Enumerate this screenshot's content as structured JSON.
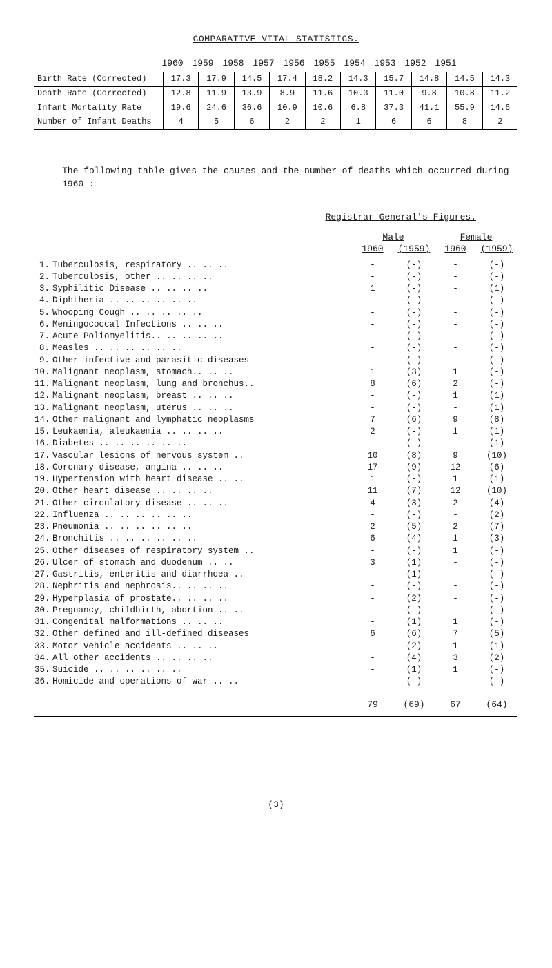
{
  "title": "COMPARATIVE VITAL STATISTICS.",
  "years": [
    "1960",
    "1959",
    "1958",
    "1957",
    "1956",
    "1955",
    "1954",
    "1953",
    "1952",
    "1951"
  ],
  "comp_rows": [
    {
      "label": "Birth Rate (Corrected)",
      "vals": [
        "17.3",
        "17.9",
        "14.5",
        "17.4",
        "18.2",
        "14.3",
        "15.7",
        "14.8",
        "14.5",
        "14.3"
      ]
    },
    {
      "label": "Death Rate (Corrected)",
      "vals": [
        "12.8",
        "11.9",
        "13.9",
        "8.9",
        "11.6",
        "10.3",
        "11.0",
        "9.8",
        "10.8",
        "11.2"
      ]
    },
    {
      "label": "Infant Mortality Rate",
      "vals": [
        "19.6",
        "24.6",
        "36.6",
        "10.9",
        "10.6",
        "6.8",
        "37.3",
        "41.1",
        "55.9",
        "14.6"
      ]
    },
    {
      "label": "Number of Infant Deaths",
      "vals": [
        "4",
        "5",
        "6",
        "2",
        "2",
        "1",
        "6",
        "6",
        "8",
        "2"
      ]
    }
  ],
  "paragraph": "The following table gives the causes and the number of deaths which occurred during 1960 :-",
  "reg_title": "Registrar General's Figures.",
  "male_label": "Male",
  "female_label": "Female",
  "y1960": "1960",
  "y1959": "(1959)",
  "causes": [
    {
      "n": "1.",
      "l": "Tuberculosis, respiratory  .. .. ..",
      "m60": "-",
      "m59": "(-)",
      "f60": "-",
      "f59": "(-)"
    },
    {
      "n": "2.",
      "l": "Tuberculosis, other   .. .. .. ..",
      "m60": "-",
      "m59": "(-)",
      "f60": "-",
      "f59": "(-)"
    },
    {
      "n": "3.",
      "l": "Syphilitic Disease    .. .. .. ..",
      "m60": "1",
      "m59": "(-)",
      "f60": "-",
      "f59": "(1)"
    },
    {
      "n": "4.",
      "l": "Diphtheria  .. .. .. .. .. ..",
      "m60": "-",
      "m59": "(-)",
      "f60": "-",
      "f59": "(-)"
    },
    {
      "n": "5.",
      "l": "Whooping Cough    .. .. .. .. ..",
      "m60": "-",
      "m59": "(-)",
      "f60": "-",
      "f59": "(-)"
    },
    {
      "n": "6.",
      "l": "Meningococcal Infections  .. .. ..",
      "m60": "-",
      "m59": "(-)",
      "f60": "-",
      "f59": "(-)"
    },
    {
      "n": "7.",
      "l": "Acute Poliomyelitis.. .. .. .. ..",
      "m60": "-",
      "m59": "(-)",
      "f60": "-",
      "f59": "(-)"
    },
    {
      "n": "8.",
      "l": "Measles  .. .. .. .. .. ..",
      "m60": "-",
      "m59": "(-)",
      "f60": "-",
      "f59": "(-)"
    },
    {
      "n": "9.",
      "l": "Other infective and parasitic diseases",
      "m60": "-",
      "m59": "(-)",
      "f60": "-",
      "f59": "(-)"
    },
    {
      "n": "10.",
      "l": "Malignant neoplasm, stomach.. .. ..",
      "m60": "1",
      "m59": "(3)",
      "f60": "1",
      "f59": "(-)"
    },
    {
      "n": "11.",
      "l": "Malignant neoplasm, lung and bronchus..",
      "m60": "8",
      "m59": "(6)",
      "f60": "2",
      "f59": "(-)"
    },
    {
      "n": "12.",
      "l": "Malignant neoplasm, breast .. .. ..",
      "m60": "-",
      "m59": "(-)",
      "f60": "1",
      "f59": "(1)"
    },
    {
      "n": "13.",
      "l": "Malignant neoplasm, uterus .. .. ..",
      "m60": "-",
      "m59": "(-)",
      "f60": "-",
      "f59": "(1)"
    },
    {
      "n": "14.",
      "l": "Other malignant and lymphatic neoplasms",
      "m60": "7",
      "m59": "(6)",
      "f60": "9",
      "f59": "(8)"
    },
    {
      "n": "15.",
      "l": "Leukaemia, aleukaemia .. .. .. ..",
      "m60": "2",
      "m59": "(-)",
      "f60": "1",
      "f59": "(1)"
    },
    {
      "n": "16.",
      "l": "Diabetes .. .. .. .. .. ..",
      "m60": "-",
      "m59": "(-)",
      "f60": "-",
      "f59": "(1)"
    },
    {
      "n": "17.",
      "l": "Vascular lesions of nervous system ..",
      "m60": "10",
      "m59": "(8)",
      "f60": "9",
      "f59": "(10)"
    },
    {
      "n": "18.",
      "l": "Coronary disease, angina  .. .. ..",
      "m60": "17",
      "m59": "(9)",
      "f60": "12",
      "f59": "(6)"
    },
    {
      "n": "19.",
      "l": "Hypertension with heart disease .. ..",
      "m60": "1",
      "m59": "(-)",
      "f60": "1",
      "f59": "(1)"
    },
    {
      "n": "20.",
      "l": "Other heart disease  .. .. .. ..",
      "m60": "11",
      "m59": "(7)",
      "f60": "12",
      "f59": "(10)"
    },
    {
      "n": "21.",
      "l": "Other circulatory disease  .. .. ..",
      "m60": "4",
      "m59": "(3)",
      "f60": "2",
      "f59": "(4)"
    },
    {
      "n": "22.",
      "l": "Influenza .. .. .. .. .. ..",
      "m60": "-",
      "m59": "(-)",
      "f60": "-",
      "f59": "(2)"
    },
    {
      "n": "23.",
      "l": "Pneumonia .. .. .. .. .. ..",
      "m60": "2",
      "m59": "(5)",
      "f60": "2",
      "f59": "(7)"
    },
    {
      "n": "24.",
      "l": "Bronchitis .. .. .. .. .. ..",
      "m60": "6",
      "m59": "(4)",
      "f60": "1",
      "f59": "(3)"
    },
    {
      "n": "25.",
      "l": "Other diseases of respiratory system ..",
      "m60": "-",
      "m59": "(-)",
      "f60": "1",
      "f59": "(-)"
    },
    {
      "n": "26.",
      "l": "Ulcer of stomach and duodenum  .. ..",
      "m60": "3",
      "m59": "(1)",
      "f60": "-",
      "f59": "(-)"
    },
    {
      "n": "27.",
      "l": "Gastritis, enteritis and diarrhoea ..",
      "m60": "-",
      "m59": "(1)",
      "f60": "-",
      "f59": "(-)"
    },
    {
      "n": "28.",
      "l": "Nephritis and nephrosis.. .. .. ..",
      "m60": "-",
      "m59": "(-)",
      "f60": "-",
      "f59": "(-)"
    },
    {
      "n": "29.",
      "l": "Hyperplasia of prostate.. .. .. ..",
      "m60": "-",
      "m59": "(2)",
      "f60": "-",
      "f59": "(-)"
    },
    {
      "n": "30.",
      "l": "Pregnancy, childbirth, abortion .. ..",
      "m60": "-",
      "m59": "(-)",
      "f60": "-",
      "f59": "(-)"
    },
    {
      "n": "31.",
      "l": "Congenital malformations  .. .. ..",
      "m60": "-",
      "m59": "(1)",
      "f60": "1",
      "f59": "(-)"
    },
    {
      "n": "32.",
      "l": "Other defined and ill-defined diseases",
      "m60": "6",
      "m59": "(6)",
      "f60": "7",
      "f59": "(5)"
    },
    {
      "n": "33.",
      "l": "Motor vehicle accidents  .. .. ..",
      "m60": "-",
      "m59": "(2)",
      "f60": "1",
      "f59": "(1)"
    },
    {
      "n": "34.",
      "l": "All other accidents  .. .. .. ..",
      "m60": "-",
      "m59": "(4)",
      "f60": "3",
      "f59": "(2)"
    },
    {
      "n": "35.",
      "l": "Suicide  .. .. .. .. .. ..",
      "m60": "-",
      "m59": "(1)",
      "f60": "1",
      "f59": "(-)"
    },
    {
      "n": "36.",
      "l": "Homicide and operations of war .. ..",
      "m60": "-",
      "m59": "(-)",
      "f60": "-",
      "f59": "(-)"
    }
  ],
  "totals": {
    "m60": "79",
    "m59": "(69)",
    "f60": "67",
    "f59": "(64)"
  },
  "page_num": "(3)"
}
